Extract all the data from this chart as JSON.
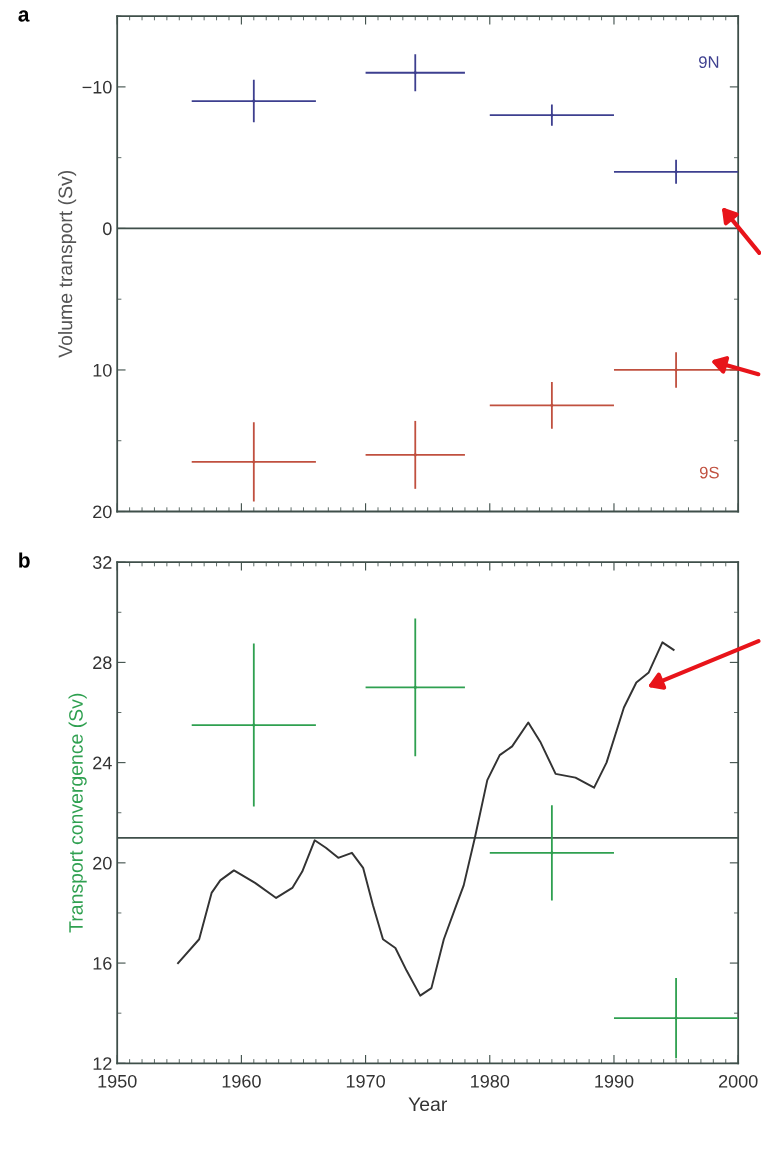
{
  "chart_data": [
    {
      "type": "scatter",
      "title": "a",
      "ylabel": "Volume transport (Sv)",
      "xlim": [
        1950,
        2000
      ],
      "xticks": [
        1950,
        1960,
        1970,
        1980,
        1990,
        2000
      ],
      "ylim": [
        20,
        -15
      ],
      "yticks": [
        {
          "value": -10,
          "label": "−10"
        },
        0,
        10,
        20
      ],
      "tick_labels": "y",
      "marker": "none",
      "grid": false,
      "legend": false,
      "ref_lines": [
        {
          "axis": "y",
          "value": 0,
          "color": "#3f4f4a"
        }
      ],
      "series": [
        {
          "name": "9N",
          "color": "#3d3f8f",
          "x": [
            1961,
            1974,
            1985,
            1995
          ],
          "values": [
            -9,
            -11,
            -8,
            -4
          ],
          "xerrors": [
            5,
            4,
            5,
            5
          ],
          "errors": [
            1.5,
            1.3,
            0.75,
            0.85
          ]
        },
        {
          "name": "9S",
          "color": "#c0503f",
          "x": [
            1961,
            1974,
            1985,
            1995
          ],
          "values": [
            16.5,
            16,
            12.5,
            10
          ],
          "xerrors": [
            5,
            4,
            5,
            5
          ],
          "errors": [
            2.8,
            2.4,
            1.65,
            1.25
          ]
        }
      ]
    },
    {
      "type": "scatter",
      "title": "b",
      "xlabel": "Year",
      "ylabel": "Transport convergence (Sv)",
      "xlim": [
        1950,
        2000
      ],
      "xticks": [
        1950,
        1960,
        1970,
        1980,
        1990,
        2000
      ],
      "ylim": [
        12,
        32
      ],
      "yticks": [
        12,
        16,
        20,
        24,
        28,
        32
      ],
      "marker": "none",
      "grid": false,
      "legend": false,
      "ref_lines": [
        {
          "axis": "y",
          "value": 21,
          "color": "#3f4f4a"
        }
      ],
      "series": [
        {
          "color": "#2fa050",
          "x": [
            1961,
            1974,
            1985,
            1995
          ],
          "values": [
            25.5,
            27,
            20.4,
            13.8
          ],
          "xerrors": [
            5,
            4,
            5,
            5
          ],
          "errors": [
            3.25,
            2.75,
            1.9,
            1.6
          ]
        },
        {
          "type": "line",
          "color": "#333333",
          "line_style": "solid",
          "x": [
            1954.9,
            1956.6,
            1957.6,
            1958.3,
            1959.4,
            1961.1,
            1962.8,
            1964.1,
            1964.9,
            1965.9,
            1966.8,
            1967.8,
            1968.9,
            1969.8,
            1970.6,
            1971.4,
            1972.4,
            1973.3,
            1974.4,
            1975.3,
            1976.3,
            1977.3,
            1977.9,
            1978.8,
            1979.8,
            1980.8,
            1981.8,
            1983.1,
            1984.1,
            1985.3,
            1986.9,
            1988.4,
            1989.4,
            1990.8,
            1991.8,
            1992.8,
            1993.9,
            1994.8
          ],
          "values": [
            16.0,
            16.95,
            18.8,
            19.3,
            19.7,
            19.2,
            18.6,
            19.0,
            19.65,
            20.9,
            20.6,
            20.2,
            20.4,
            19.8,
            18.3,
            16.95,
            16.6,
            15.7,
            14.7,
            15.0,
            16.95,
            18.3,
            19.1,
            21.0,
            23.3,
            24.3,
            24.65,
            25.6,
            24.8,
            23.55,
            23.4,
            23.0,
            24.0,
            26.2,
            27.2,
            27.6,
            28.8,
            28.5
          ]
        }
      ]
    }
  ]
}
